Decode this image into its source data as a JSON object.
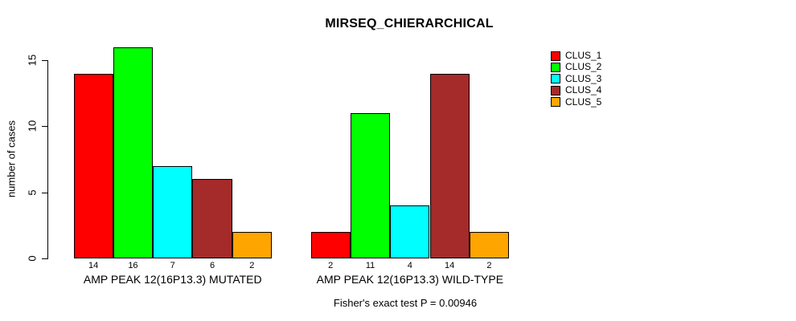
{
  "chart_data": {
    "type": "bar",
    "title": "MIRSEQ_CHIERARCHICAL",
    "ylabel": "number of cases",
    "ylim": [
      0,
      15
    ],
    "yticks": [
      0,
      5,
      10,
      15
    ],
    "grid": false,
    "legend_position": "right",
    "clusters": [
      {
        "name": "CLUS_1",
        "color": "#FF0000"
      },
      {
        "name": "CLUS_2",
        "color": "#00FF00"
      },
      {
        "name": "CLUS_3",
        "color": "#00FFFF"
      },
      {
        "name": "CLUS_4",
        "color": "#A52A2A"
      },
      {
        "name": "CLUS_5",
        "color": "#FFA500"
      }
    ],
    "categories": [
      "CLUS_1",
      "CLUS_2",
      "CLUS_3",
      "CLUS_4",
      "CLUS_5"
    ],
    "groups": [
      {
        "label": "AMP PEAK 12(16P13.3) MUTATED",
        "values": [
          14,
          16,
          7,
          6,
          2
        ]
      },
      {
        "label": "AMP PEAK 12(16P13.3) WILD-TYPE",
        "values": [
          2,
          11,
          4,
          14,
          2
        ]
      }
    ],
    "footnote": "Fisher's exact test P = 0.00946"
  }
}
